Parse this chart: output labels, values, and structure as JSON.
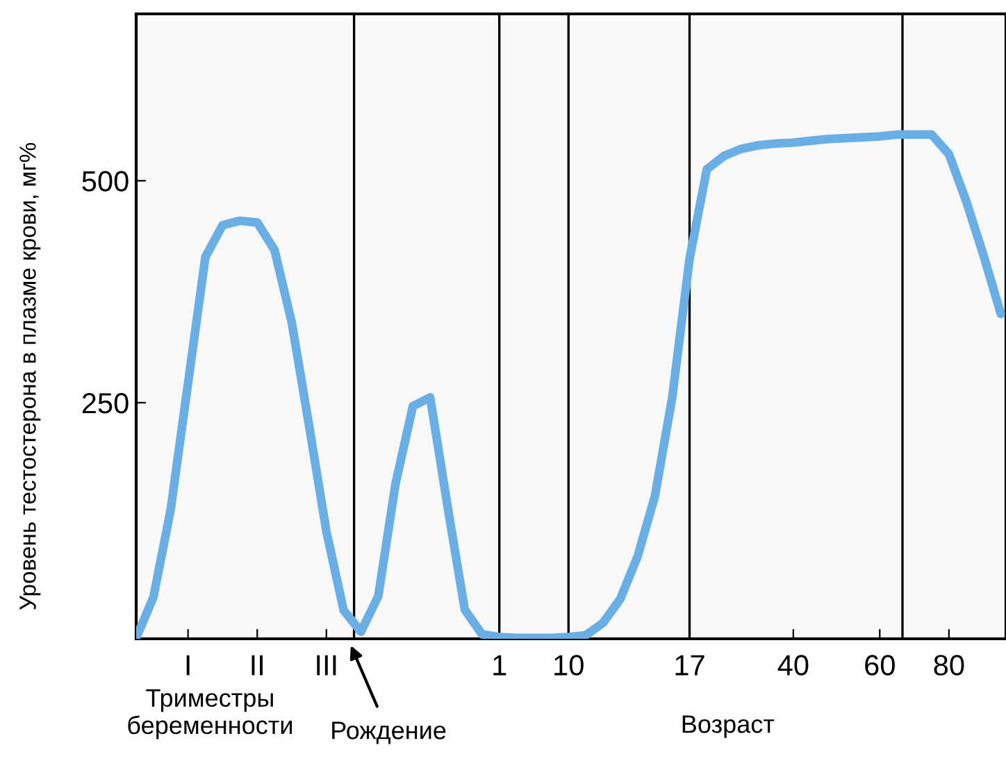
{
  "chart_data": {
    "type": "line",
    "ylabel": "Уровень тестостерона в плазме крови, мг%",
    "categories": [
      null,
      null,
      null,
      "I",
      null,
      null,
      null,
      "II",
      null,
      null,
      null,
      "III",
      null,
      null,
      null,
      null,
      null,
      null,
      null,
      null,
      null,
      "1",
      null,
      null,
      null,
      "10",
      null,
      null,
      null,
      null,
      null,
      null,
      "17",
      null,
      null,
      null,
      null,
      null,
      "40",
      null,
      null,
      null,
      null,
      "60",
      null,
      null,
      null,
      "80",
      null,
      null,
      null
    ],
    "series": [
      {
        "color": "#6aaee6",
        "values": [
          -15,
          31,
          130,
          272,
          414,
          450,
          455,
          453,
          422,
          340,
          224,
          105,
          16,
          -8,
          32,
          159,
          246,
          256,
          134,
          17,
          -11,
          -14,
          -15,
          -15,
          -15,
          -14,
          -12,
          2,
          29,
          77,
          145,
          256,
          412,
          513,
          528,
          536,
          540,
          542,
          543,
          545,
          547,
          548,
          549,
          550,
          552,
          552,
          552,
          530,
          477,
          416,
          350
        ]
      }
    ],
    "ylim": [
      -16,
      688
    ],
    "yticks": [
      250,
      500
    ],
    "ref_lines": [
      {
        "axis": "x",
        "value": "1",
        "color": "#000000"
      },
      {
        "axis": "x",
        "value": "10",
        "color": "#000000"
      },
      {
        "axis": "x",
        "value": "17",
        "color": "#000000"
      }
    ],
    "annotations": [
      "Триместры\nбеременности",
      "Рождение",
      "Возраст"
    ],
    "grid": false,
    "legend": false,
    "marker": "none",
    "line_style": "solid"
  }
}
